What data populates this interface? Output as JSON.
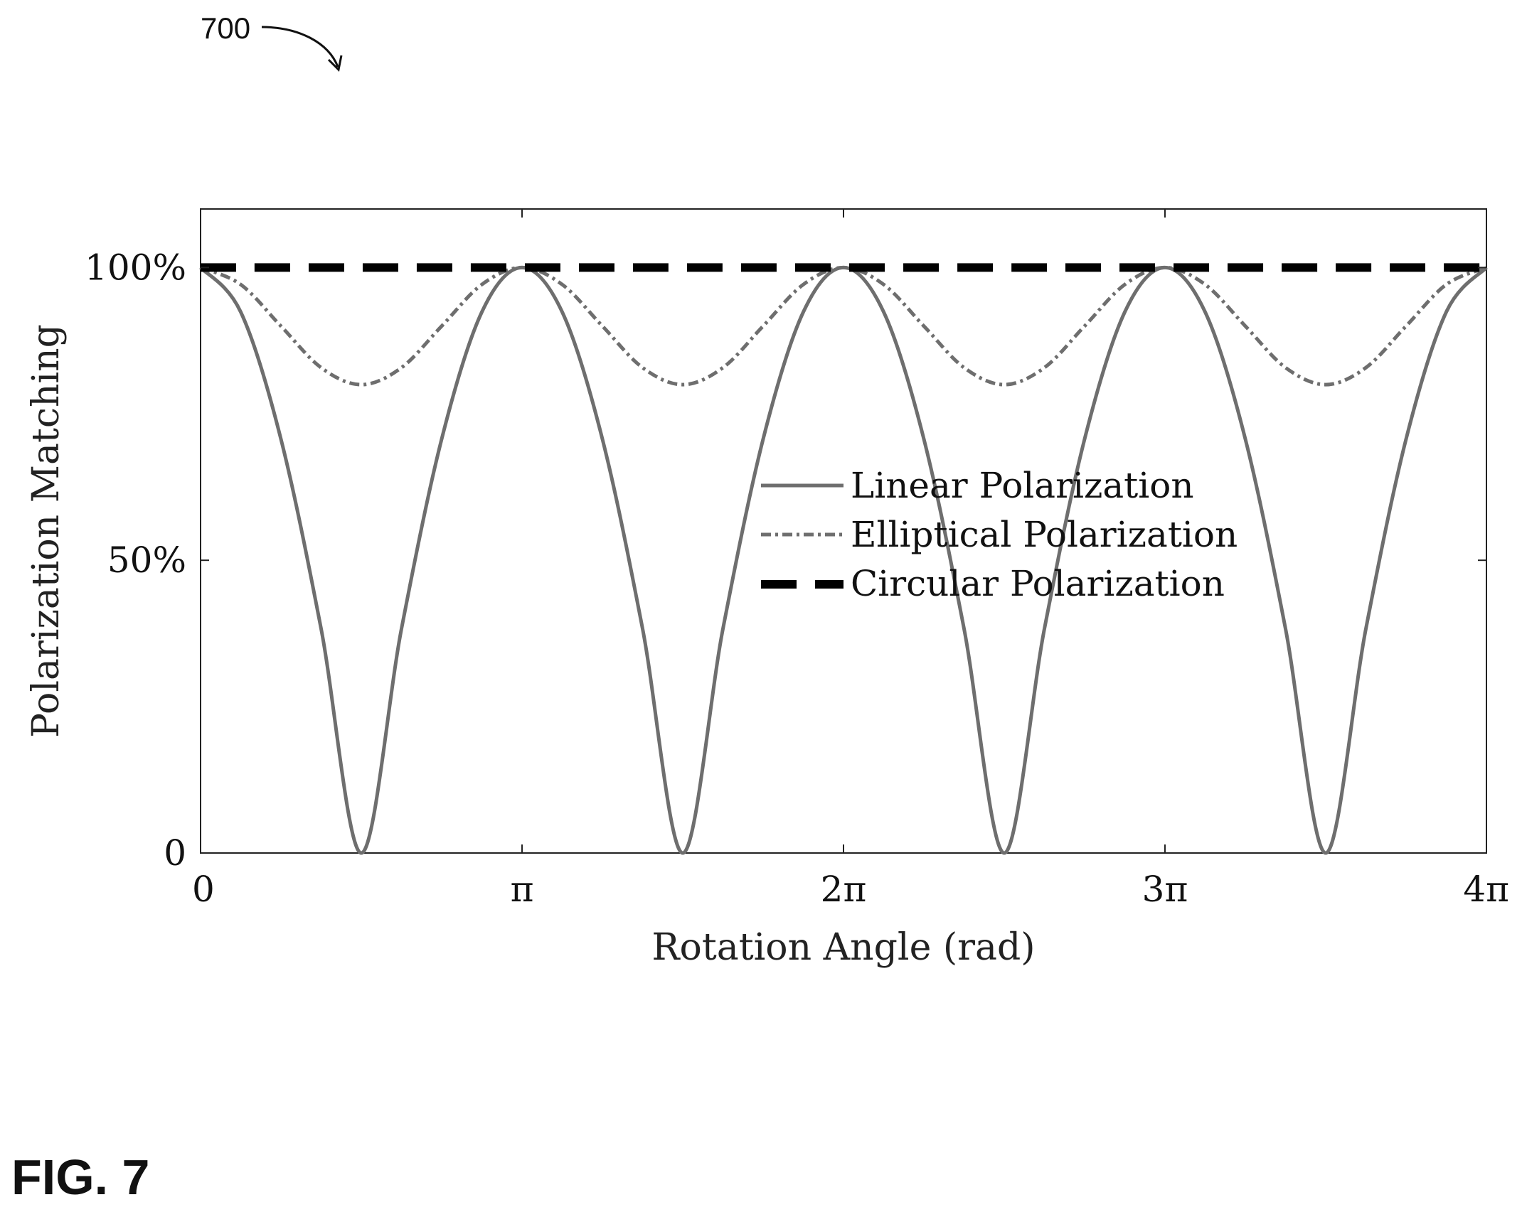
{
  "figure": {
    "reference_number": "700",
    "figure_label": "FIG. 7"
  },
  "chart_data": {
    "type": "line",
    "title": "",
    "xlabel": "Rotation Angle (rad)",
    "ylabel": "Polarization Matching",
    "xlim": [
      0,
      12.566370614359172
    ],
    "ylim": [
      0,
      1.1
    ],
    "x_ticks": [
      {
        "value": 0,
        "label": "0"
      },
      {
        "value": 3.141592653589793,
        "label": "π"
      },
      {
        "value": 6.283185307179586,
        "label": "2π"
      },
      {
        "value": 9.42477796076938,
        "label": "3π"
      },
      {
        "value": 12.566370614359172,
        "label": "4π"
      }
    ],
    "y_ticks": [
      {
        "value": 0,
        "label": "0"
      },
      {
        "value": 0.5,
        "label": "50%"
      },
      {
        "value": 1.0,
        "label": "100%"
      }
    ],
    "grid": false,
    "legend_position": "center-right",
    "series": [
      {
        "name": "Linear Polarization",
        "style": "solid",
        "color": "#6e6e6e",
        "x": [
          0,
          0.3927,
          0.7854,
          1.1781,
          1.5708,
          1.9635,
          2.3562,
          2.7489,
          3.1416,
          3.5343,
          3.927,
          4.3197,
          4.7124,
          5.1051,
          5.4978,
          5.8905,
          6.2832,
          6.6759,
          7.0686,
          7.4613,
          7.854,
          8.2467,
          8.6394,
          9.0321,
          9.4248,
          9.8175,
          10.2102,
          10.6029,
          10.9956,
          11.3883,
          11.781,
          12.1737,
          12.5664
        ],
        "y": [
          1.0,
          0.924,
          0.707,
          0.383,
          0.0,
          0.383,
          0.707,
          0.924,
          1.0,
          0.924,
          0.707,
          0.383,
          0.0,
          0.383,
          0.707,
          0.924,
          1.0,
          0.924,
          0.707,
          0.383,
          0.0,
          0.383,
          0.707,
          0.924,
          1.0,
          0.924,
          0.707,
          0.383,
          0.0,
          0.383,
          0.707,
          0.924,
          1.0
        ]
      },
      {
        "name": "Elliptical Polarization",
        "style": "dash-dot",
        "color": "#6e6e6e",
        "x": [
          0,
          0.3927,
          0.7854,
          1.1781,
          1.5708,
          1.9635,
          2.3562,
          2.7489,
          3.1416,
          3.5343,
          3.927,
          4.3197,
          4.7124,
          5.1051,
          5.4978,
          5.8905,
          6.2832,
          6.6759,
          7.0686,
          7.4613,
          7.854,
          8.2467,
          8.6394,
          9.0321,
          9.4248,
          9.8175,
          10.2102,
          10.6029,
          10.9956,
          11.3883,
          11.781,
          12.1737,
          12.5664
        ],
        "y": [
          1.0,
          0.971,
          0.9,
          0.829,
          0.8,
          0.829,
          0.9,
          0.971,
          1.0,
          0.971,
          0.9,
          0.829,
          0.8,
          0.829,
          0.9,
          0.971,
          1.0,
          0.971,
          0.9,
          0.829,
          0.8,
          0.829,
          0.9,
          0.971,
          1.0,
          0.971,
          0.9,
          0.829,
          0.8,
          0.829,
          0.9,
          0.971,
          1.0
        ]
      },
      {
        "name": "Circular Polarization",
        "style": "dashed",
        "color": "#000000",
        "x": [
          0,
          12.5664
        ],
        "y": [
          1.0,
          1.0
        ]
      }
    ]
  }
}
